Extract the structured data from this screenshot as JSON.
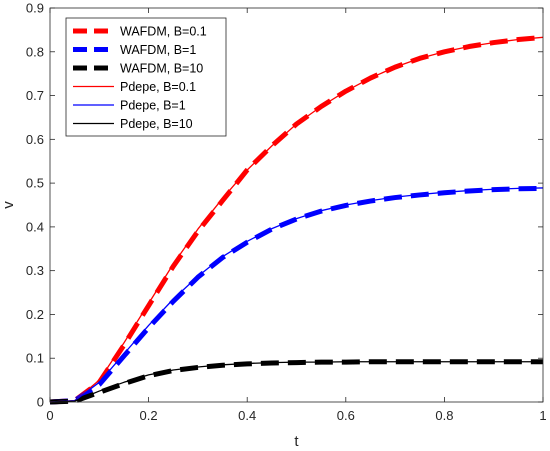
{
  "chart_data": {
    "type": "line",
    "xlabel": "t",
    "ylabel": "v",
    "xlim": [
      0,
      1
    ],
    "ylim": [
      0,
      0.9
    ],
    "xticks": [
      "0",
      "0.2",
      "0.4",
      "0.6",
      "0.8",
      "1"
    ],
    "yticks": [
      "0",
      "0.1",
      "0.2",
      "0.3",
      "0.4",
      "0.5",
      "0.6",
      "0.7",
      "0.8",
      "0.9"
    ],
    "grid": false,
    "legend_position": "top-left",
    "x": [
      0,
      0.05,
      0.1,
      0.15,
      0.2,
      0.25,
      0.3,
      0.35,
      0.4,
      0.45,
      0.5,
      0.55,
      0.6,
      0.65,
      0.7,
      0.75,
      0.8,
      0.85,
      0.9,
      0.95,
      1.0
    ],
    "series": [
      {
        "name": "WAFDM, B=0.1",
        "color": "#ff0000",
        "style": "dashed-thick",
        "values": [
          0,
          0.003,
          0.045,
          0.13,
          0.22,
          0.31,
          0.39,
          0.46,
          0.53,
          0.585,
          0.635,
          0.675,
          0.71,
          0.74,
          0.765,
          0.785,
          0.8,
          0.812,
          0.821,
          0.828,
          0.833
        ]
      },
      {
        "name": "WAFDM, B=1",
        "color": "#0000ff",
        "style": "dashed-thick",
        "values": [
          0,
          0.003,
          0.04,
          0.105,
          0.17,
          0.23,
          0.285,
          0.33,
          0.365,
          0.395,
          0.418,
          0.436,
          0.449,
          0.459,
          0.467,
          0.473,
          0.478,
          0.482,
          0.485,
          0.487,
          0.488
        ]
      },
      {
        "name": "WAFDM, B=10",
        "color": "#000000",
        "style": "dashed-thick",
        "values": [
          0,
          0.002,
          0.022,
          0.042,
          0.06,
          0.072,
          0.079,
          0.084,
          0.087,
          0.089,
          0.09,
          0.091,
          0.091,
          0.092,
          0.092,
          0.092,
          0.092,
          0.092,
          0.092,
          0.092,
          0.092
        ]
      },
      {
        "name": "Pdepe, B=0.1",
        "color": "#ff0000",
        "style": "solid-thin",
        "values": [
          0,
          0.003,
          0.05,
          0.135,
          0.225,
          0.315,
          0.395,
          0.465,
          0.53,
          0.585,
          0.635,
          0.675,
          0.71,
          0.74,
          0.765,
          0.785,
          0.8,
          0.812,
          0.821,
          0.828,
          0.833
        ]
      },
      {
        "name": "Pdepe, B=1",
        "color": "#0000ff",
        "style": "solid-thin",
        "values": [
          0,
          0.003,
          0.045,
          0.11,
          0.175,
          0.235,
          0.287,
          0.332,
          0.367,
          0.396,
          0.419,
          0.437,
          0.45,
          0.46,
          0.468,
          0.474,
          0.479,
          0.483,
          0.486,
          0.488,
          0.489
        ]
      },
      {
        "name": "Pdepe, B=10",
        "color": "#000000",
        "style": "solid-thin",
        "values": [
          0,
          0.002,
          0.025,
          0.045,
          0.062,
          0.073,
          0.08,
          0.085,
          0.088,
          0.09,
          0.091,
          0.091,
          0.092,
          0.092,
          0.092,
          0.092,
          0.092,
          0.092,
          0.092,
          0.092,
          0.092
        ]
      }
    ]
  }
}
